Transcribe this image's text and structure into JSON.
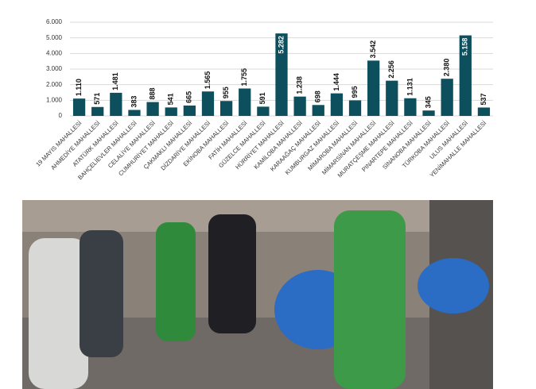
{
  "chart_data": {
    "type": "bar",
    "categories": [
      "19 MAYIS MAHALLESİ",
      "AHMEDİYE MAHALLESİ",
      "ATATÜRK MAHALLESİ",
      "BAHÇELİEVLER MAHALLESİ",
      "CELALİYE MAHALLESİ",
      "CUMHURİYET MAHALLESİ",
      "ÇAKMAKLI MAHALLESİ",
      "DİZDARİYE MAHALLESİ",
      "EKİNOBA MAHALLESİ",
      "FATİH MAHALLESİ",
      "GÜZELCE MAHALLESİ",
      "HÜRRİYET MAHALLESİ",
      "KAMİLOBA MAHALLESİ",
      "KARAAĞAÇ MAHALLESİ",
      "KUMBURGAZ MAHALLESİ",
      "MİMAROBA MAHALLESİ",
      "MİMARSİNAN MAHALLESİ",
      "MURATÇEŞME MAHALLESİ",
      "PINARTEPE MAHALLESİ",
      "SİNANOBA MAHALLESİ",
      "TÜRKOBA MAHALLESİ",
      "ULUS MAHALLESİ",
      "YENİMAHALLE MAHALLESİ"
    ],
    "values": [
      1110,
      571,
      1481,
      383,
      888,
      541,
      665,
      1565,
      955,
      1755,
      591,
      5282,
      1238,
      698,
      1444,
      995,
      3542,
      2256,
      1131,
      345,
      2380,
      5158,
      537
    ],
    "value_labels": [
      "1.110",
      "571",
      "1.481",
      "383",
      "888",
      "541",
      "665",
      "1.565",
      "955",
      "1.755",
      "591",
      "5.282",
      "1.238",
      "698",
      "1.444",
      "995",
      "3.542",
      "2.256",
      "1.131",
      "345",
      "2.380",
      "5.158",
      "537"
    ],
    "color": "#0d4f5c",
    "ylim": [
      0,
      6000
    ],
    "yticks": [
      0,
      {
        "value": 1000,
        "label": "1.000"
      },
      {
        "value": 2000,
        "label": "2.000"
      },
      {
        "value": 3000,
        "label": "3.000"
      },
      {
        "value": 4000,
        "label": "4.000"
      },
      {
        "value": 5000,
        "label": "5.000"
      },
      {
        "value": 6000,
        "label": "6.000"
      }
    ],
    "grid": true
  }
}
